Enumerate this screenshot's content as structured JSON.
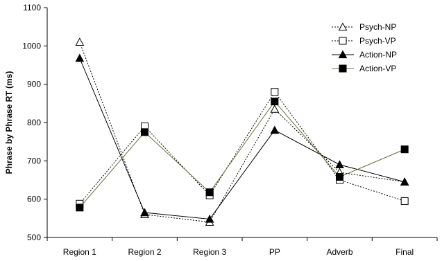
{
  "chart_data": {
    "type": "line",
    "title": "",
    "xlabel": "",
    "ylabel": "Phrase by Phrase RT (ms)",
    "categories": [
      "Region 1",
      "Region 2",
      "Region 3",
      "PP",
      "Adverb",
      "Final"
    ],
    "ylim": [
      500,
      1100
    ],
    "yticks": [
      500,
      600,
      700,
      800,
      900,
      1000,
      1100
    ],
    "legend_position": "top-right",
    "grid": false,
    "series": [
      {
        "name": "Psych-NP",
        "marker": "triangle-open",
        "line": "dotted",
        "color": "#000000",
        "values": [
          1010,
          560,
          540,
          835,
          670,
          645
        ]
      },
      {
        "name": "Psych-VP",
        "marker": "square-open",
        "line": "dotted",
        "color": "#000000",
        "values": [
          588,
          790,
          610,
          880,
          650,
          595
        ]
      },
      {
        "name": "Action-NP",
        "marker": "triangle-filled",
        "line": "solid",
        "color": "#000000",
        "values": [
          968,
          565,
          548,
          780,
          690,
          645
        ]
      },
      {
        "name": "Action-VP",
        "marker": "square-filled",
        "line": "solid",
        "color": "#6b6b3a",
        "values": [
          578,
          775,
          618,
          855,
          658,
          730
        ]
      }
    ]
  }
}
